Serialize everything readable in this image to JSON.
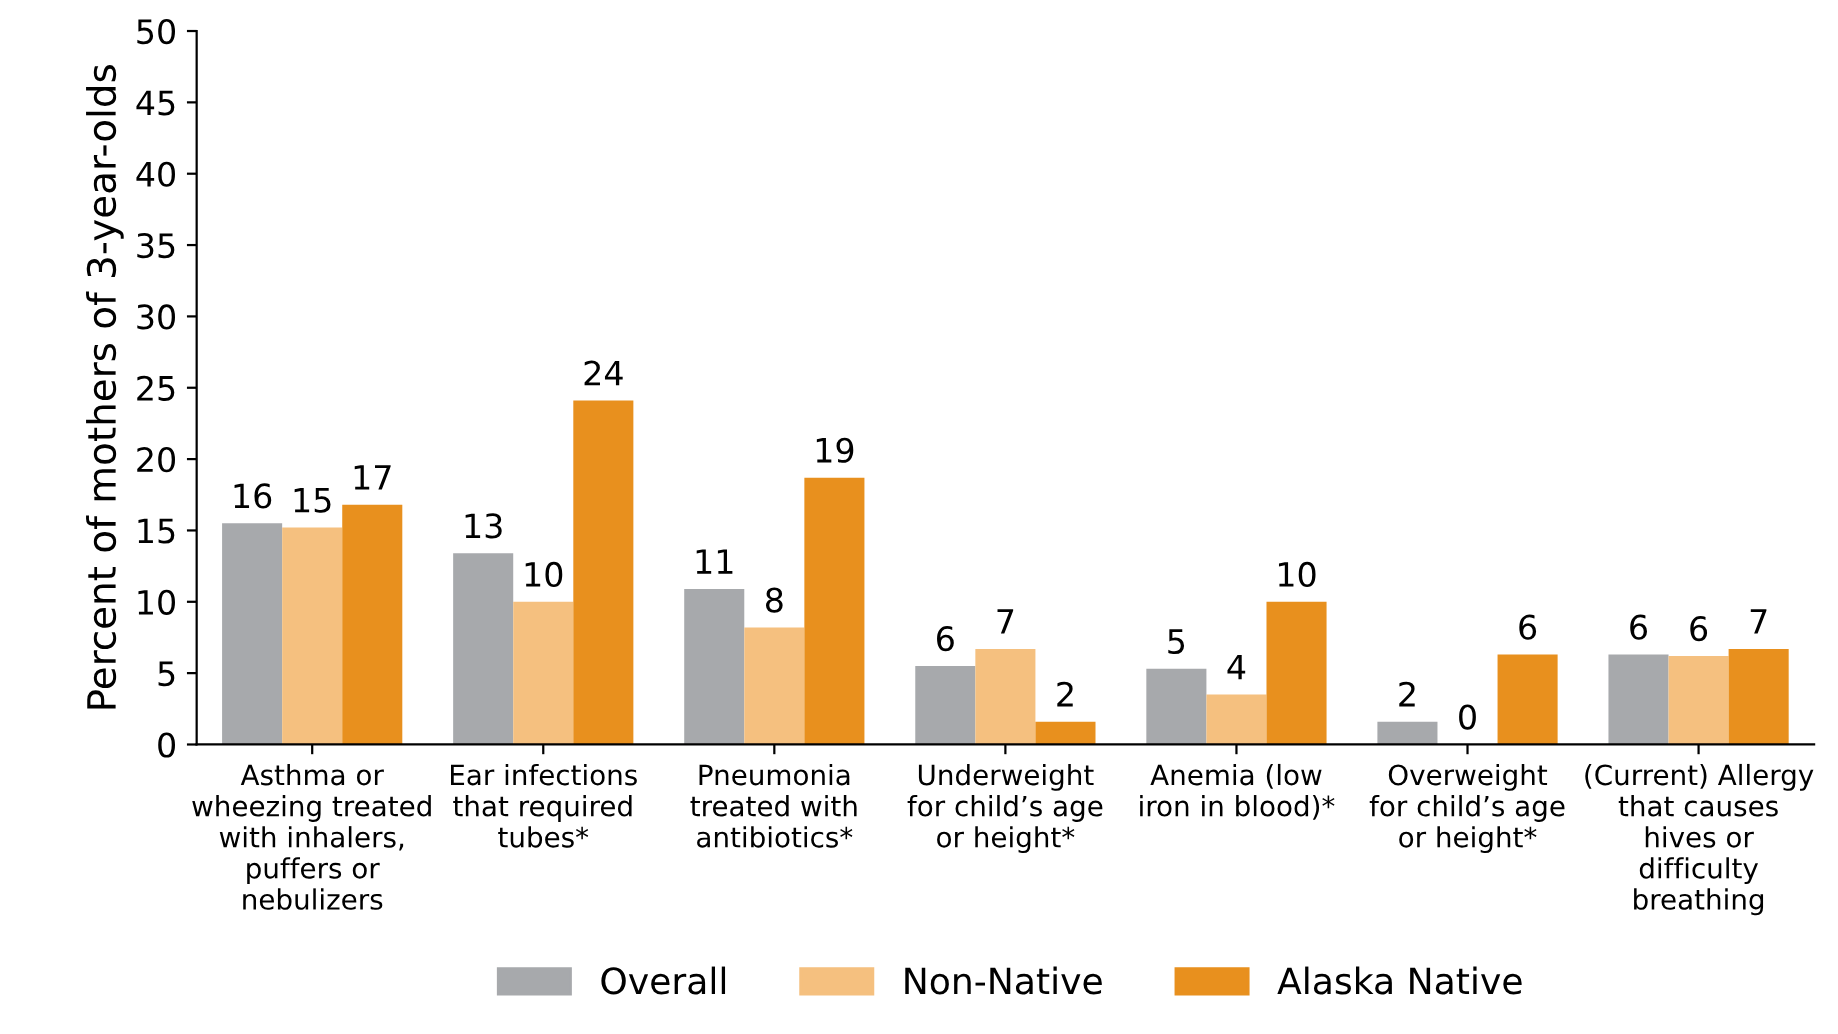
{
  "chart_data": {
    "type": "bar",
    "ylabel": "Percent of mothers of 3-year-olds",
    "categories": [
      "Asthma or\nwheezing treated\nwith inhalers,\npuffers or\nnebulizers",
      "Ear infections\nthat required\ntubes*",
      "Pneumonia\ntreated with\nantibiotics*",
      "Underweight\nfor child’s age\nor height*",
      "Anemia (low\niron in blood)*",
      "Overweight\nfor child’s age\nor height*",
      "(Current) Allergy\nthat causes\nhives or\ndifficulty\nbreathing"
    ],
    "series": [
      {
        "name": "Overall",
        "color": "#a7a9ac",
        "values": [
          15.5,
          13.4,
          10.9,
          5.5,
          5.3,
          1.6,
          6.3
        ],
        "value_labels": [
          "16",
          "13",
          "11",
          "6",
          "5",
          "2",
          "6"
        ]
      },
      {
        "name": "Non-Native",
        "color": "#f5c07f",
        "values": [
          15.2,
          10.0,
          8.2,
          6.7,
          3.5,
          0,
          6.2
        ],
        "value_labels": [
          "15",
          "10",
          "8",
          "7",
          "4",
          "0",
          "6"
        ]
      },
      {
        "name": "Alaska Native",
        "color": "#e8901e",
        "values": [
          16.8,
          24.1,
          18.7,
          1.6,
          10.0,
          6.3,
          6.7
        ],
        "value_labels": [
          "17",
          "24",
          "19",
          "2",
          "10",
          "6",
          "7"
        ]
      }
    ],
    "ylim": [
      0,
      50
    ],
    "yticks": [
      0,
      5,
      10,
      15,
      20,
      25,
      30,
      35,
      40,
      45,
      50
    ],
    "grid": false,
    "legend": "bottom"
  }
}
